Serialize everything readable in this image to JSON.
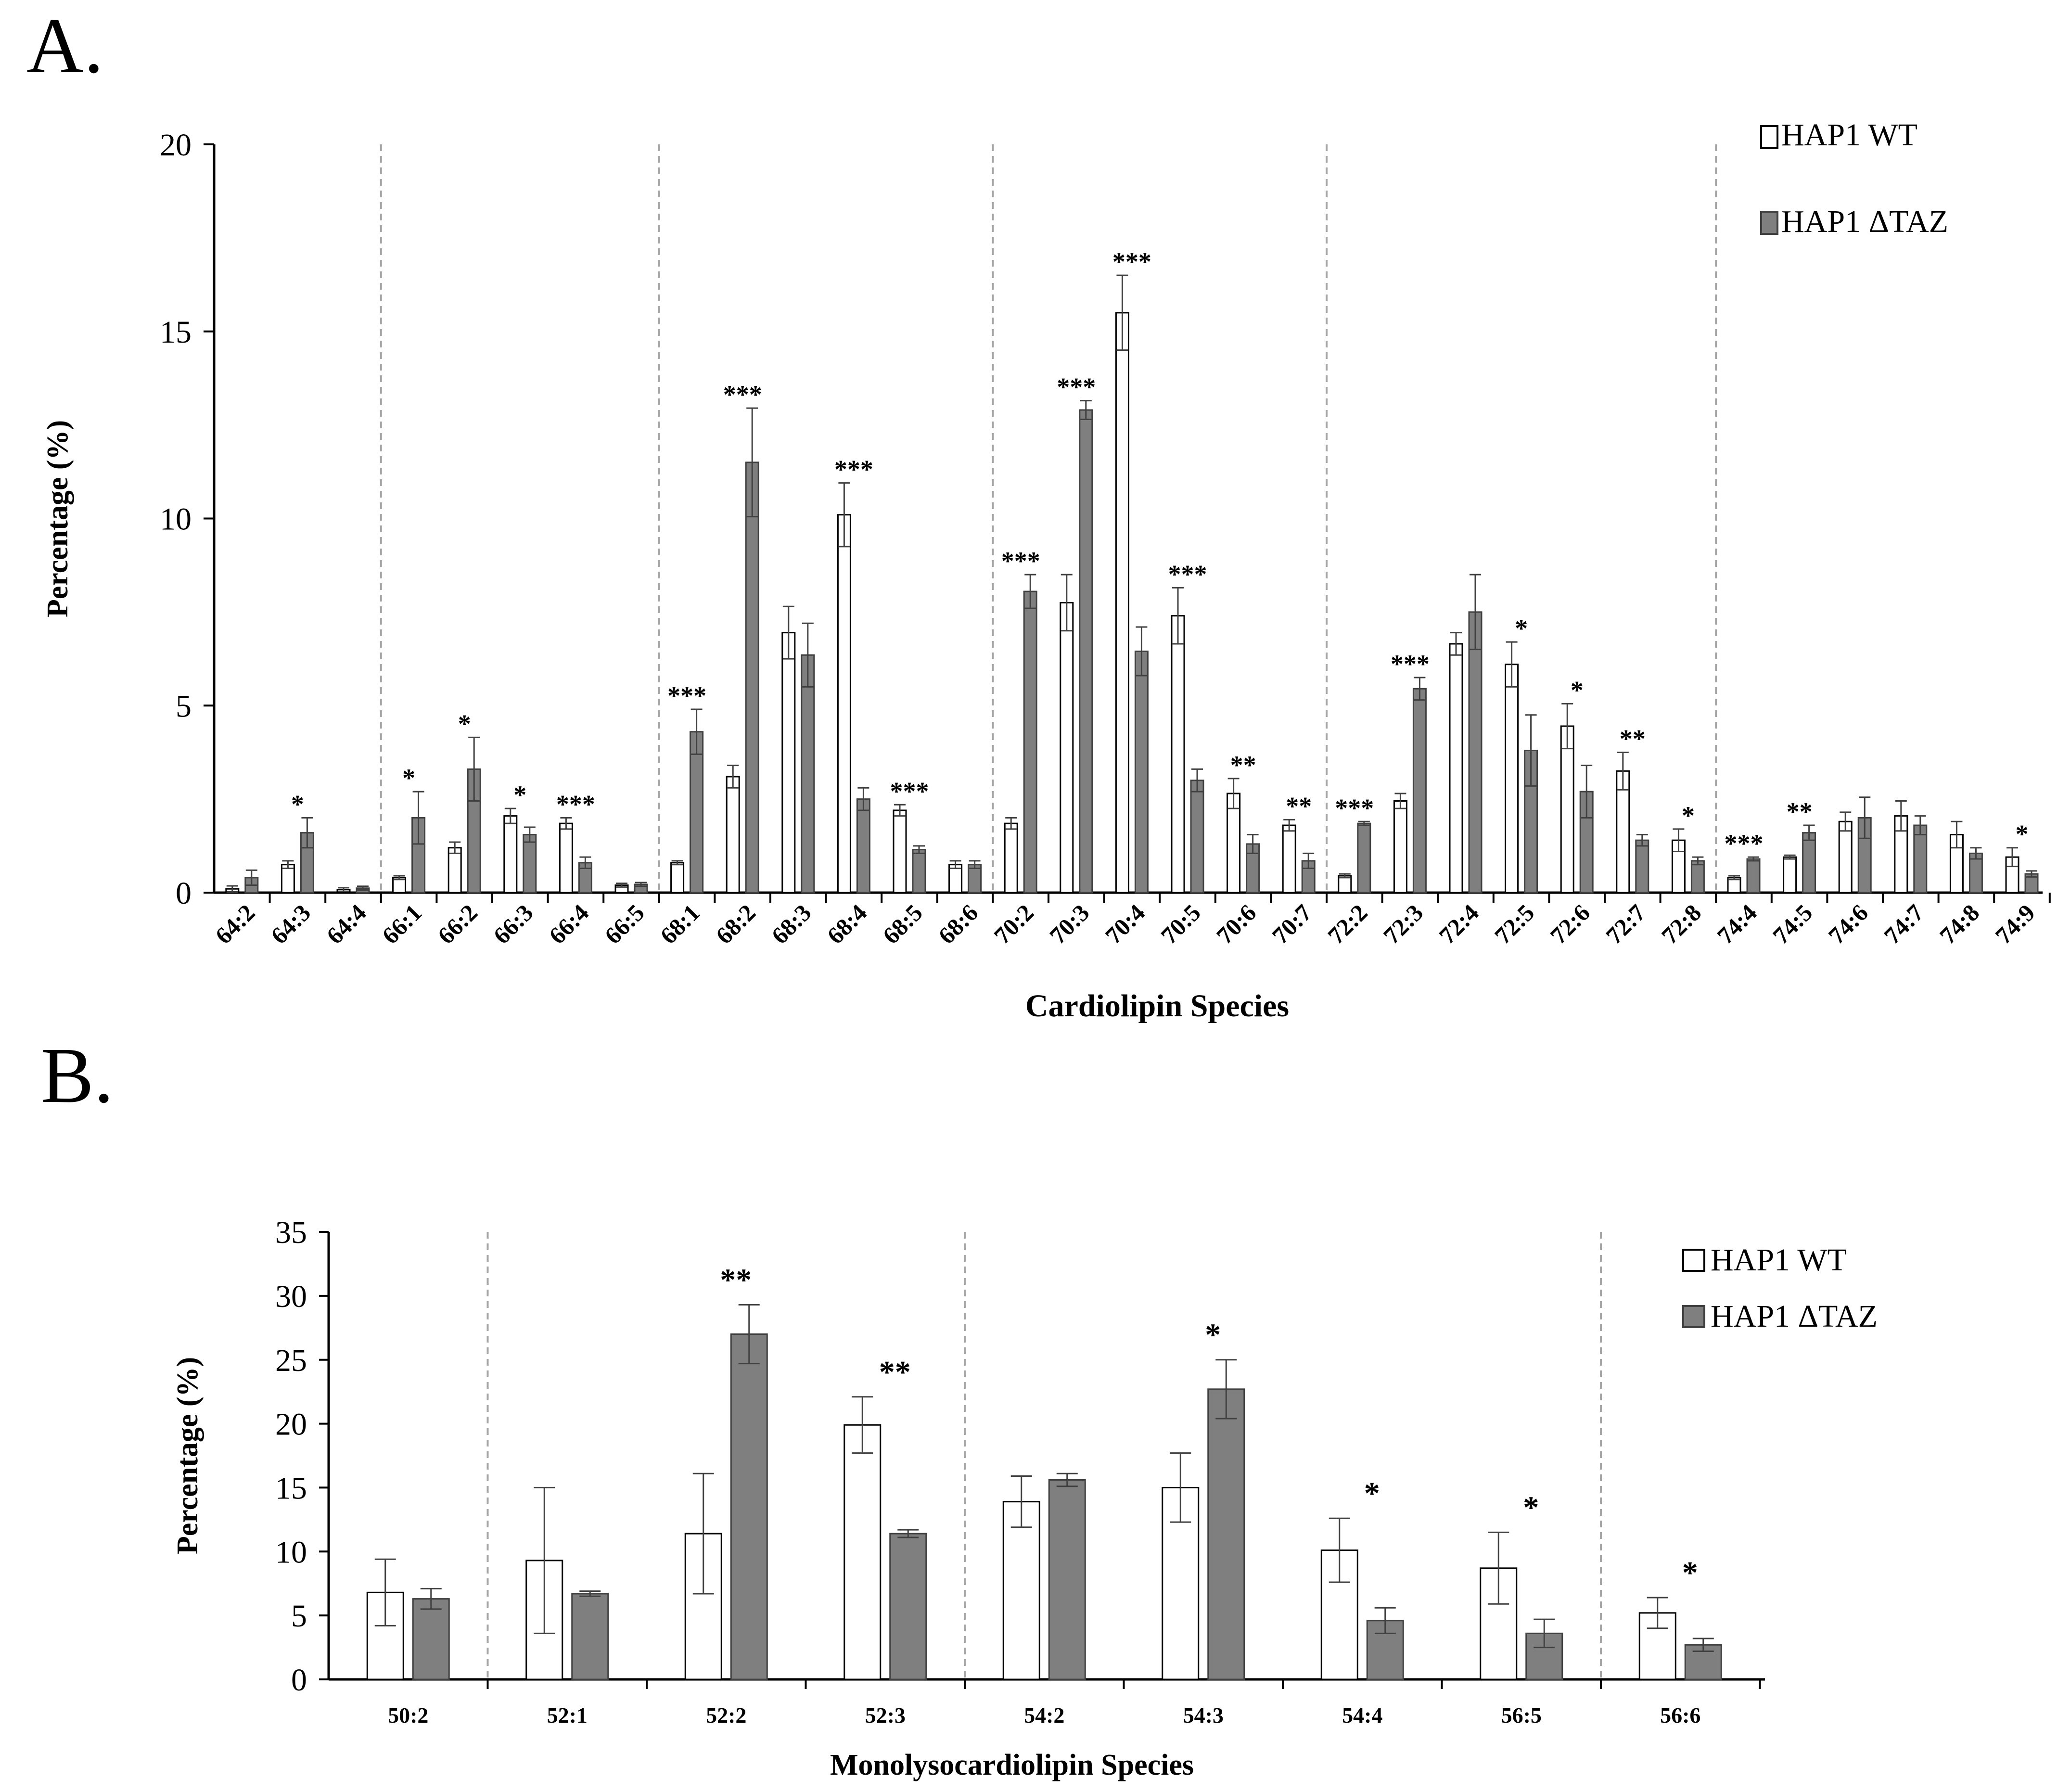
{
  "chart_data": [
    {
      "panel_label": "A.",
      "type": "bar",
      "title": "",
      "xlabel": "Cardiolipin Species",
      "ylabel": "Percentage (%)",
      "ylim": [
        0,
        20
      ],
      "yticks": [
        "0",
        "5",
        "10",
        "15",
        "20"
      ],
      "categories": [
        "64:2",
        "64:3",
        "64:4",
        "66:1",
        "66:2",
        "66:3",
        "66:4",
        "66:5",
        "68:1",
        "68:2",
        "68:3",
        "68:4",
        "68:5",
        "68:6",
        "70:2",
        "70:3",
        "70:4",
        "70:5",
        "70:6",
        "70:7",
        "72:2",
        "72:3",
        "72:4",
        "72:5",
        "72:6",
        "72:7",
        "72:8",
        "74:4",
        "74:5",
        "74:6",
        "74:7",
        "74:8",
        "74:9"
      ],
      "group_breaks_after": [
        2,
        7,
        13,
        19,
        26
      ],
      "series": [
        {
          "name": "HAP1 WT",
          "color": "#ffffff",
          "values": [
            0.1,
            0.75,
            0.08,
            0.4,
            1.2,
            2.05,
            1.85,
            0.2,
            0.8,
            3.1,
            6.95,
            10.1,
            2.2,
            0.75,
            1.85,
            7.75,
            15.5,
            7.4,
            2.65,
            1.8,
            0.45,
            2.45,
            6.65,
            6.1,
            4.45,
            3.25,
            1.4,
            0.4,
            0.95,
            1.9,
            2.05,
            1.55,
            0.95
          ],
          "errors": [
            0.08,
            0.1,
            0.05,
            0.05,
            0.15,
            0.2,
            0.15,
            0.05,
            0.05,
            0.3,
            0.7,
            0.85,
            0.15,
            0.1,
            0.15,
            0.75,
            1.0,
            0.75,
            0.4,
            0.15,
            0.05,
            0.2,
            0.3,
            0.6,
            0.6,
            0.5,
            0.3,
            0.05,
            0.05,
            0.25,
            0.4,
            0.35,
            0.25
          ]
        },
        {
          "name": "HAP1 ΔTAZ",
          "color": "#7f7f7f",
          "values": [
            0.4,
            1.6,
            0.12,
            2.0,
            3.3,
            1.55,
            0.8,
            0.22,
            4.3,
            11.5,
            6.35,
            2.5,
            1.15,
            0.75,
            8.05,
            12.9,
            6.45,
            3.0,
            1.3,
            0.85,
            1.85,
            5.45,
            7.5,
            3.8,
            2.7,
            1.4,
            0.85,
            0.9,
            1.6,
            2.0,
            1.8,
            1.05,
            0.5
          ]
        },
        {
          "name": "HAP1 ΔTAZ errors",
          "values": [
            0.2,
            0.4,
            0.05,
            0.7,
            0.85,
            0.2,
            0.15,
            0.05,
            0.6,
            1.45,
            0.85,
            0.3,
            0.1,
            0.1,
            0.45,
            0.25,
            0.65,
            0.3,
            0.25,
            0.2,
            0.05,
            0.3,
            1.0,
            0.95,
            0.7,
            0.15,
            0.1,
            0.05,
            0.2,
            0.55,
            0.25,
            0.15,
            0.08
          ]
        }
      ],
      "significance": [
        "",
        "*",
        "",
        "*",
        "*",
        "*",
        "***",
        "",
        "***",
        "***",
        "",
        "***",
        "***",
        "",
        "***",
        "***",
        "***",
        "***",
        "**",
        "**",
        "***",
        "***",
        "",
        "*",
        "*",
        "**",
        "*",
        "***",
        "**",
        "",
        "",
        "",
        "*"
      ],
      "legend": {
        "placement": "top-right",
        "entries": [
          "HAP1 WT",
          "HAP1 ΔTAZ"
        ]
      }
    },
    {
      "panel_label": "B.",
      "type": "bar",
      "title": "",
      "xlabel": "Monolysocardiolipin Species",
      "ylabel": "Percentage (%)",
      "ylim": [
        0,
        35
      ],
      "yticks": [
        "0",
        "5",
        "10",
        "15",
        "20",
        "25",
        "30",
        "35"
      ],
      "categories": [
        "50:2",
        "52:1",
        "52:2",
        "52:3",
        "54:2",
        "54:3",
        "54:4",
        "56:5",
        "56:6"
      ],
      "group_breaks_after": [
        0,
        3,
        7
      ],
      "series": [
        {
          "name": "HAP1 WT",
          "color": "#ffffff",
          "values": [
            6.8,
            9.3,
            11.4,
            19.9,
            13.9,
            15.0,
            10.1,
            8.7,
            5.2
          ],
          "errors": [
            2.6,
            5.7,
            4.7,
            2.2,
            2.0,
            2.7,
            2.5,
            2.8,
            1.2
          ]
        },
        {
          "name": "HAP1 ΔTAZ",
          "color": "#7f7f7f",
          "values": [
            6.3,
            6.7,
            27.0,
            11.4,
            15.6,
            22.7,
            4.6,
            3.6,
            2.7
          ]
        },
        {
          "name": "HAP1 ΔTAZ errors",
          "values": [
            0.8,
            0.2,
            2.3,
            0.3,
            0.5,
            2.3,
            1.0,
            1.1,
            0.5
          ]
        }
      ],
      "significance": [
        "",
        "",
        "**",
        "**",
        "",
        "*",
        "*",
        "*",
        "*"
      ],
      "legend": {
        "placement": "top-right",
        "entries": [
          "HAP1 WT",
          "HAP1 ΔTAZ"
        ]
      }
    }
  ]
}
